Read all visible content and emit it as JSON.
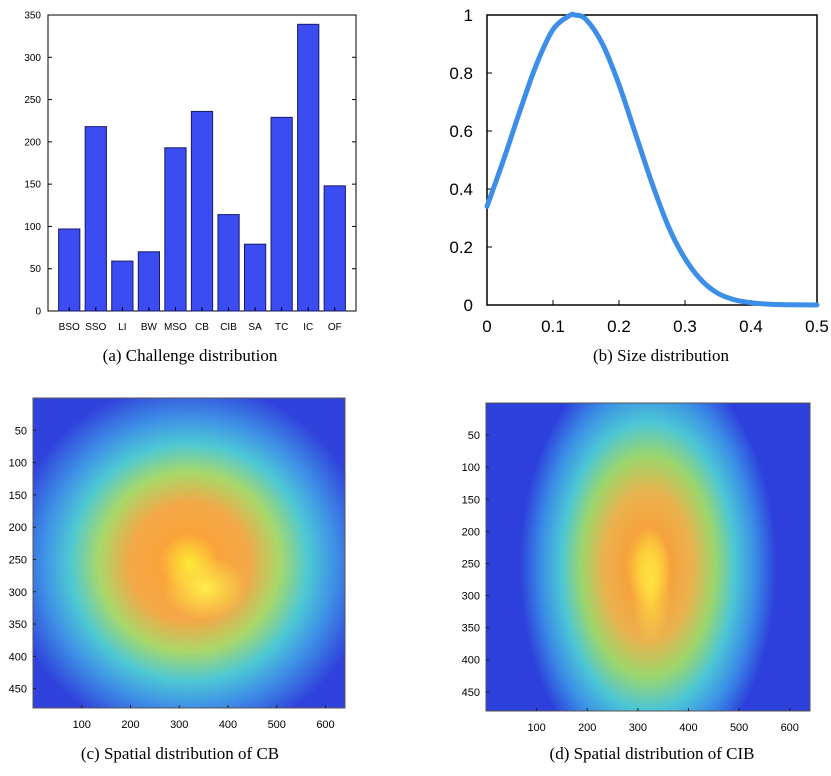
{
  "chart_data": [
    {
      "type": "bar",
      "caption": "(a) Challenge distribution",
      "categories": [
        "BSO",
        "SSO",
        "LI",
        "BW",
        "MSO",
        "CB",
        "CIB",
        "SA",
        "TC",
        "IC",
        "OF"
      ],
      "values": [
        97,
        218,
        59,
        70,
        193,
        236,
        114,
        79,
        229,
        339,
        148
      ],
      "ylim": [
        0,
        350
      ],
      "yticks": [
        0,
        50,
        100,
        150,
        200,
        250,
        300,
        350
      ],
      "bar_color": "#3b4cf2",
      "bar_outline": "#1a1a6a"
    },
    {
      "type": "line",
      "caption": "(b) Size distribution",
      "xlim": [
        0,
        0.5
      ],
      "ylim": [
        0,
        1
      ],
      "xticks": [
        "0",
        "0.1",
        "0.2",
        "0.3",
        "0.4",
        "0.5"
      ],
      "yticks": [
        "0",
        "0.2",
        "0.4",
        "0.6",
        "0.8",
        "1"
      ],
      "x": [
        0,
        0.025,
        0.05,
        0.075,
        0.1,
        0.125,
        0.133,
        0.15,
        0.175,
        0.2,
        0.225,
        0.25,
        0.275,
        0.3,
        0.325,
        0.35,
        0.375,
        0.4,
        0.425,
        0.45,
        0.475,
        0.5
      ],
      "y": [
        0.34,
        0.5,
        0.67,
        0.83,
        0.95,
        0.998,
        1.0,
        0.985,
        0.9,
        0.76,
        0.59,
        0.42,
        0.27,
        0.16,
        0.085,
        0.04,
        0.018,
        0.008,
        0.003,
        0.0012,
        0.0004,
        0.0001
      ],
      "line_color": "#3d8ee8"
    },
    {
      "type": "heatmap",
      "caption": "(c) Spatial distribution of CB",
      "xlim": [
        0,
        640
      ],
      "ylim": [
        0,
        480
      ],
      "xticks": [
        "100",
        "200",
        "300",
        "400",
        "500",
        "600"
      ],
      "yticks": [
        "50",
        "100",
        "150",
        "200",
        "250",
        "300",
        "350",
        "400",
        "450"
      ],
      "hotspot": {
        "x": 330,
        "y": 290
      }
    },
    {
      "type": "heatmap",
      "caption": "(d) Spatial distribution of CIB",
      "xlim": [
        0,
        640
      ],
      "ylim": [
        0,
        480
      ],
      "xticks": [
        "100",
        "200",
        "300",
        "400",
        "500",
        "600"
      ],
      "yticks": [
        "50",
        "100",
        "150",
        "200",
        "250",
        "300",
        "350",
        "400",
        "450"
      ],
      "hotspot": {
        "x": 325,
        "y": 285
      }
    }
  ]
}
